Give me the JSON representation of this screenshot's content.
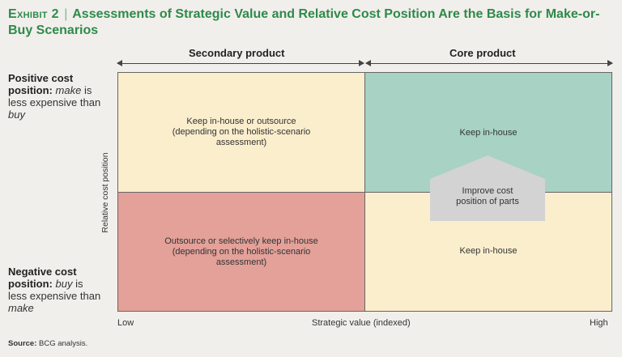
{
  "title": {
    "exhibit": "Exhibit 2",
    "separator": "|",
    "text": "Assessments of Strategic Value and Relative Cost Position Are the Basis for Make-or-Buy Scenarios"
  },
  "columns": {
    "left": "Secondary product",
    "right": "Core product"
  },
  "rows": {
    "top": {
      "bold": "Positive cost position:",
      "italic1": "make",
      "mid": "is less expensive than",
      "italic2": "buy"
    },
    "bottom": {
      "bold": "Negative cost position:",
      "italic1": "buy",
      "mid": "is less expensive than",
      "italic2": "make"
    }
  },
  "y_axis_label": "Relative cost position",
  "quadrants": {
    "top_left": {
      "line1": "Keep in-house or outsource",
      "line2": "(depending on the holistic-scenario",
      "line3": "assessment)"
    },
    "top_right": {
      "line1": "Keep in-house"
    },
    "bottom_left": {
      "line1": "Outsource or selectively keep in-house",
      "line2": "(depending on the holistic-scenario",
      "line3": "assessment)"
    },
    "bottom_right": {
      "line1": "Keep in-house"
    }
  },
  "callout": {
    "line1": "Improve cost",
    "line2": "position of parts"
  },
  "x_axis": {
    "low": "Low",
    "label": "Strategic value (indexed)",
    "high": "High"
  },
  "source": {
    "label": "Source:",
    "text": "BCG analysis."
  },
  "colors": {
    "title": "#2e8a4a",
    "cream": "#fbeecd",
    "teal": "#a7d2c4",
    "salmon": "#e3a199",
    "callout": "#d3d3d3"
  }
}
